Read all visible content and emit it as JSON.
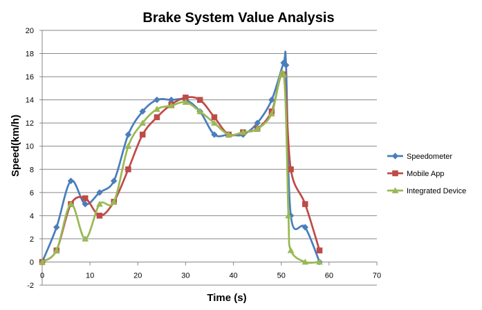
{
  "chart_data": {
    "type": "scatter",
    "title": "Brake System Value Analysis",
    "xlabel": "Time (s)",
    "ylabel": "Speed(km/h)",
    "xlim": [
      0,
      70
    ],
    "ylim": [
      -2,
      20
    ],
    "xticks": [
      0,
      10,
      20,
      30,
      40,
      50,
      60,
      70
    ],
    "yticks": [
      -2,
      0,
      2,
      4,
      6,
      8,
      10,
      12,
      14,
      16,
      18,
      20
    ],
    "grid": "horizontal",
    "legend_position": "right",
    "smoothed_lines": true,
    "series": [
      {
        "name": "Speedometer",
        "color": "#4a7ebb",
        "marker": "diamond",
        "x": [
          0,
          3,
          6,
          9,
          12,
          15,
          18,
          21,
          24,
          27,
          30,
          33,
          36,
          39,
          42,
          45,
          48,
          50.5,
          51,
          52,
          55,
          58
        ],
        "y": [
          0,
          3,
          7,
          5,
          6,
          7,
          11,
          13,
          14,
          14,
          14,
          13,
          11,
          11,
          11,
          12,
          14,
          17.2,
          17,
          4,
          3,
          0
        ]
      },
      {
        "name": "Mobile App",
        "color": "#be4b48",
        "marker": "square",
        "x": [
          0,
          3,
          6,
          9,
          12,
          15,
          18,
          21,
          24,
          27,
          30,
          33,
          36,
          39,
          42,
          45,
          48,
          50.5,
          52,
          55,
          58
        ],
        "y": [
          0,
          1,
          5,
          5.5,
          4,
          5.2,
          8,
          11,
          12.5,
          13.6,
          14.2,
          14,
          12.5,
          11,
          11.2,
          11.5,
          13,
          16.2,
          8,
          5,
          1
        ]
      },
      {
        "name": "Integrated Device",
        "color": "#98b954",
        "marker": "triangle",
        "x": [
          0,
          3,
          6,
          9,
          12,
          15,
          18,
          21,
          24,
          27,
          30,
          33,
          36,
          39,
          42,
          45,
          48,
          50.5,
          51.5,
          52,
          55,
          58
        ],
        "y": [
          0,
          1,
          5,
          2,
          5,
          5.2,
          10,
          12,
          13.2,
          13.5,
          13.8,
          13,
          12,
          11,
          11.2,
          11.5,
          12.8,
          16.2,
          4,
          1,
          0,
          0
        ]
      }
    ]
  }
}
